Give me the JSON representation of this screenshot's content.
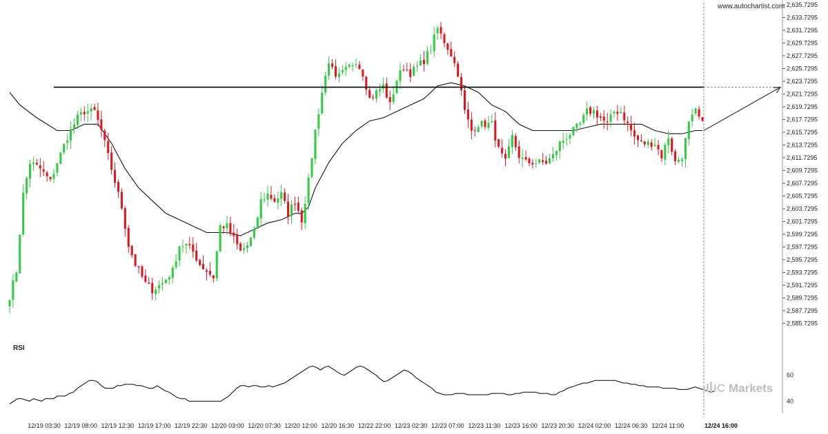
{
  "watermark": "www.autochartist.com",
  "brand": {
    "prefix": "IC",
    "name": "Markets"
  },
  "colors": {
    "up": "#2ecc40",
    "down": "#e0161c",
    "ma": "#111111",
    "resistance": "#000000",
    "grid": "#d8d8d8",
    "projection": "#333333"
  },
  "chart_data": [
    {
      "type": "candlestick",
      "title": "",
      "y_ticks": [
        "2,635.7295",
        "2,633.7295",
        "2,631.7295",
        "2,629.7295",
        "2,627.7295",
        "2,625.7295",
        "2,623.7295",
        "2,621.7295",
        "2,619.7295",
        "2,617.7295",
        "2,615.7295",
        "2,613.7295",
        "2,611.7295",
        "2,609.7295",
        "2,607.7295",
        "2,605.7295",
        "2,603.7295",
        "2,601.7295",
        "2,599.7295",
        "2,597.7295",
        "2,595.7295",
        "2,593.7295",
        "2,591.7295",
        "2,589.7295",
        "2,587.7295",
        "2,585.7295"
      ],
      "ylim": [
        2584.6,
        2635.7295
      ],
      "x_ticks": [
        "12/19 03:30",
        "12/19 08:00",
        "12/19 12:30",
        "12/19 17:00",
        "12/19 22:30",
        "12/20 03:00",
        "12/20 07:30",
        "12/20 12:00",
        "12/20 16:30",
        "12/22 22:00",
        "12/23 02:30",
        "12/23 07:00",
        "12/23 11:30",
        "12/23 16:00",
        "12/23 20:30",
        "12/24 02:00",
        "12/24 06:30",
        "12/24 11:00",
        "12/24 16:00"
      ],
      "x_tick_highlight": "12/24 16:00",
      "price_anchors": [
        [
          0,
          2590
        ],
        [
          2,
          2594
        ],
        [
          4,
          2606
        ],
        [
          6,
          2611
        ],
        [
          9,
          2610
        ],
        [
          12,
          2608
        ],
        [
          14,
          2611
        ],
        [
          17,
          2615
        ],
        [
          20,
          2618
        ],
        [
          22,
          2619
        ],
        [
          25,
          2619
        ],
        [
          27,
          2616
        ],
        [
          30,
          2610
        ],
        [
          33,
          2604
        ],
        [
          35,
          2598
        ],
        [
          37,
          2595
        ],
        [
          40,
          2592
        ],
        [
          42,
          2591
        ],
        [
          45,
          2592
        ],
        [
          48,
          2594
        ],
        [
          50,
          2598
        ],
        [
          52,
          2598
        ],
        [
          54,
          2597
        ],
        [
          56,
          2595
        ],
        [
          58,
          2594
        ],
        [
          60,
          2593
        ],
        [
          62,
          2601
        ],
        [
          64,
          2601
        ],
        [
          66,
          2599
        ],
        [
          68,
          2597
        ],
        [
          70,
          2598
        ],
        [
          72,
          2600
        ],
        [
          74,
          2605
        ],
        [
          76,
          2606
        ],
        [
          78,
          2605
        ],
        [
          80,
          2606
        ],
        [
          82,
          2603
        ],
        [
          84,
          2605
        ],
        [
          86,
          2602
        ],
        [
          88,
          2608
        ],
        [
          90,
          2616
        ],
        [
          92,
          2622
        ],
        [
          94,
          2627
        ],
        [
          96,
          2624
        ],
        [
          98,
          2625
        ],
        [
          100,
          2626
        ],
        [
          102,
          2627
        ],
        [
          104,
          2625
        ],
        [
          106,
          2621
        ],
        [
          108,
          2622
        ],
        [
          110,
          2623
        ],
        [
          112,
          2620
        ],
        [
          114,
          2624
        ],
        [
          116,
          2626
        ],
        [
          118,
          2625
        ],
        [
          120,
          2626
        ],
        [
          122,
          2627
        ],
        [
          124,
          2629
        ],
        [
          126,
          2632
        ],
        [
          128,
          2630
        ],
        [
          130,
          2628
        ],
        [
          132,
          2625
        ],
        [
          134,
          2619
        ],
        [
          136,
          2616
        ],
        [
          138,
          2617
        ],
        [
          140,
          2617
        ],
        [
          142,
          2617
        ],
        [
          144,
          2613
        ],
        [
          146,
          2611
        ],
        [
          148,
          2615
        ],
        [
          150,
          2612
        ],
        [
          152,
          2611
        ],
        [
          154,
          2611
        ],
        [
          156,
          2611
        ],
        [
          158,
          2611
        ],
        [
          160,
          2612
        ],
        [
          162,
          2614
        ],
        [
          164,
          2615
        ],
        [
          166,
          2616
        ],
        [
          168,
          2617
        ],
        [
          170,
          2619
        ],
        [
          172,
          2619
        ],
        [
          174,
          2618
        ],
        [
          176,
          2617
        ],
        [
          178,
          2619
        ],
        [
          180,
          2619
        ],
        [
          182,
          2617
        ],
        [
          184,
          2615
        ],
        [
          186,
          2614
        ],
        [
          188,
          2614
        ],
        [
          190,
          2614
        ],
        [
          192,
          2612
        ],
        [
          194,
          2615
        ],
        [
          196,
          2611
        ],
        [
          198,
          2612
        ],
        [
          200,
          2617
        ],
        [
          202,
          2619
        ],
        [
          204,
          2617
        ]
      ],
      "candle_count": 205,
      "moving_average": [
        [
          0,
          2622
        ],
        [
          3,
          2620
        ],
        [
          8,
          2618
        ],
        [
          14,
          2616
        ],
        [
          18,
          2616
        ],
        [
          22,
          2617
        ],
        [
          26,
          2617
        ],
        [
          30,
          2614
        ],
        [
          34,
          2610
        ],
        [
          38,
          2607
        ],
        [
          42,
          2605
        ],
        [
          46,
          2603
        ],
        [
          50,
          2602
        ],
        [
          54,
          2601
        ],
        [
          58,
          2600
        ],
        [
          60,
          2600
        ],
        [
          64,
          2600
        ],
        [
          68,
          2599.5
        ],
        [
          72,
          2600.5
        ],
        [
          76,
          2601.5
        ],
        [
          80,
          2602
        ],
        [
          84,
          2603
        ],
        [
          86,
          2603
        ],
        [
          88,
          2604
        ],
        [
          90,
          2607
        ],
        [
          94,
          2611
        ],
        [
          98,
          2614
        ],
        [
          102,
          2616
        ],
        [
          106,
          2617.5
        ],
        [
          110,
          2618
        ],
        [
          114,
          2619
        ],
        [
          118,
          2620
        ],
        [
          122,
          2621
        ],
        [
          126,
          2623
        ],
        [
          130,
          2623.5
        ],
        [
          134,
          2623
        ],
        [
          138,
          2622
        ],
        [
          142,
          2620
        ],
        [
          146,
          2619
        ],
        [
          150,
          2617
        ],
        [
          154,
          2616
        ],
        [
          158,
          2616
        ],
        [
          162,
          2616
        ],
        [
          166,
          2616
        ],
        [
          170,
          2616.5
        ],
        [
          174,
          2617
        ],
        [
          178,
          2617
        ],
        [
          182,
          2617
        ],
        [
          186,
          2617
        ],
        [
          190,
          2616
        ],
        [
          194,
          2615.5
        ],
        [
          198,
          2615.5
        ],
        [
          202,
          2616
        ],
        [
          204,
          2616
        ]
      ],
      "resistance_level": 2622.8,
      "resistance_from_candle": 13,
      "projection": {
        "from_price": 2616,
        "to_price": 2622.8
      }
    },
    {
      "type": "line",
      "title": "RSI",
      "y_ticks": [
        "60",
        "40"
      ],
      "ylim": [
        36,
        72
      ],
      "values": [
        38,
        40,
        42,
        42,
        41,
        40,
        42,
        41,
        40,
        42,
        42,
        42,
        44,
        44,
        44,
        46,
        47,
        50,
        52,
        54,
        56,
        56,
        55,
        52,
        50,
        50,
        50,
        52,
        52,
        53,
        53,
        53,
        52,
        52,
        51,
        50,
        50,
        52,
        50,
        48,
        47,
        45,
        43,
        42,
        42,
        40,
        40,
        40,
        40,
        40,
        40,
        40,
        40,
        40,
        42,
        44,
        47,
        50,
        52,
        52,
        51,
        52,
        52,
        51,
        51,
        52,
        51,
        52,
        53,
        54,
        56,
        58,
        60,
        62,
        64,
        66,
        67,
        66,
        64,
        66,
        67,
        65,
        63,
        61,
        60,
        62,
        64,
        66,
        67,
        66,
        64,
        62,
        60,
        57,
        55,
        56,
        58,
        60,
        62,
        64,
        63,
        61,
        58,
        56,
        54,
        52,
        50,
        47,
        46,
        45,
        45,
        45,
        46,
        46,
        46,
        45,
        45,
        45,
        45,
        45,
        45,
        46,
        46,
        46,
        46,
        45,
        45,
        46,
        46,
        47,
        47,
        47,
        47,
        46,
        46,
        46,
        45,
        45,
        47,
        48,
        50,
        51,
        52,
        53,
        54,
        54,
        55,
        56,
        56,
        56,
        56,
        56,
        56,
        55,
        54,
        54,
        53,
        53,
        52,
        52,
        51,
        51,
        51,
        51,
        50,
        50,
        50,
        50,
        49,
        49,
        49,
        50,
        51,
        50,
        49,
        48,
        47,
        48
      ]
    }
  ]
}
